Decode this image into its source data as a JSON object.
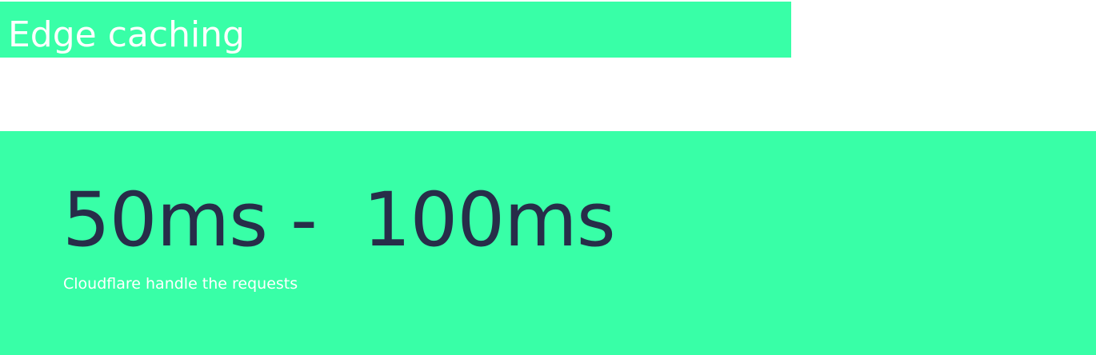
{
  "header": {
    "title": "Edge caching"
  },
  "stat": {
    "value": "50ms -  100ms",
    "caption": "Cloudflare handle the requests"
  },
  "colors": {
    "accent": "#38ffa7",
    "value_text": "#272d49",
    "light_text": "#ffffff"
  }
}
